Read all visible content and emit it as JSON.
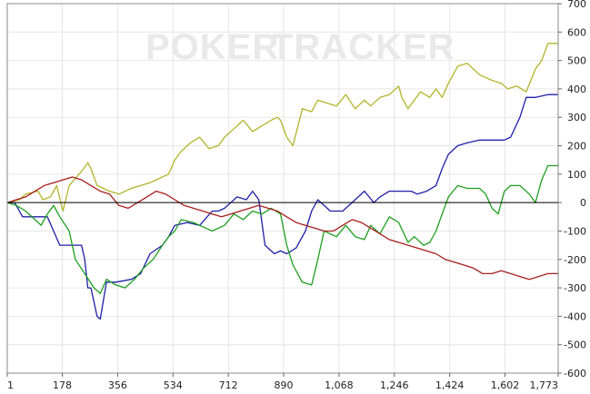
{
  "watermark": {
    "part1": "POKER",
    "part2": "TRACKER"
  },
  "chart_data": {
    "type": "line",
    "title": "",
    "xlabel": "",
    "ylabel": "",
    "xlim": [
      1,
      1773
    ],
    "ylim": [
      -600,
      700
    ],
    "x_ticks": [
      1,
      178,
      356,
      534,
      712,
      890,
      1068,
      1246,
      1424,
      1602,
      1773
    ],
    "x_tick_labels": [
      "1",
      "178",
      "356",
      "534",
      "712",
      "890",
      "1,068",
      "1,246",
      "1,424",
      "1,602",
      "1,773"
    ],
    "y_ticks": [
      700,
      600,
      500,
      400,
      300,
      200,
      100,
      0,
      -100,
      -200,
      -300,
      -400,
      -500,
      -600
    ],
    "y_tick_labels": [
      "700",
      "600",
      "500",
      "400",
      "300",
      "200",
      "100",
      "0",
      "-100",
      "-200",
      "-300",
      "-400",
      "-500",
      "-600"
    ],
    "y_axis_side": "right",
    "grid": true,
    "zero_line": true,
    "series": [
      {
        "color": "#b3b32a",
        "x": [
          1,
          40,
          60,
          100,
          115,
          140,
          160,
          180,
          200,
          240,
          260,
          270,
          290,
          330,
          360,
          400,
          430,
          460,
          480,
          520,
          540,
          560,
          590,
          620,
          650,
          680,
          700,
          730,
          760,
          790,
          820,
          850,
          870,
          880,
          900,
          920,
          950,
          980,
          1000,
          1030,
          1060,
          1090,
          1120,
          1150,
          1170,
          1200,
          1230,
          1260,
          1270,
          1290,
          1310,
          1330,
          1360,
          1380,
          1400,
          1420,
          1450,
          1480,
          1520,
          1560,
          1590,
          1610,
          1640,
          1670,
          1700,
          1720,
          1740,
          1773
        ],
        "y": [
          0,
          10,
          30,
          40,
          10,
          20,
          60,
          -30,
          60,
          110,
          140,
          120,
          60,
          40,
          30,
          50,
          60,
          70,
          80,
          100,
          150,
          180,
          210,
          230,
          190,
          200,
          230,
          260,
          290,
          250,
          270,
          290,
          300,
          290,
          230,
          200,
          330,
          320,
          360,
          350,
          340,
          380,
          330,
          360,
          340,
          370,
          380,
          410,
          370,
          330,
          360,
          390,
          370,
          400,
          370,
          420,
          480,
          490,
          450,
          430,
          420,
          400,
          410,
          390,
          470,
          500,
          560,
          560
        ]
      },
      {
        "color": "#1f1fa8",
        "x": [
          1,
          25,
          50,
          80,
          100,
          130,
          170,
          200,
          240,
          250,
          260,
          270,
          290,
          300,
          320,
          350,
          400,
          430,
          460,
          500,
          520,
          540,
          580,
          620,
          660,
          680,
          700,
          720,
          740,
          770,
          790,
          810,
          830,
          860,
          880,
          900,
          930,
          960,
          980,
          1000,
          1040,
          1080,
          1120,
          1150,
          1180,
          1200,
          1230,
          1260,
          1300,
          1320,
          1350,
          1380,
          1400,
          1420,
          1450,
          1480,
          1520,
          1560,
          1600,
          1620,
          1650,
          1670,
          1700,
          1740,
          1773
        ],
        "y": [
          0,
          0,
          -50,
          -50,
          -50,
          -50,
          -150,
          -150,
          -150,
          -200,
          -300,
          -300,
          -400,
          -410,
          -280,
          -280,
          -270,
          -250,
          -180,
          -150,
          -120,
          -80,
          -70,
          -80,
          -30,
          -30,
          -20,
          0,
          20,
          10,
          40,
          10,
          -150,
          -180,
          -170,
          -180,
          -160,
          -100,
          -30,
          10,
          -30,
          -30,
          10,
          40,
          0,
          20,
          40,
          40,
          40,
          30,
          40,
          60,
          120,
          170,
          200,
          210,
          220,
          220,
          220,
          230,
          300,
          370,
          370,
          380,
          380
        ]
      },
      {
        "color": "#1e9e1e",
        "x": [
          1,
          30,
          60,
          90,
          110,
          130,
          150,
          170,
          200,
          220,
          250,
          280,
          300,
          320,
          350,
          380,
          410,
          440,
          470,
          500,
          520,
          540,
          560,
          600,
          640,
          660,
          700,
          730,
          760,
          790,
          820,
          850,
          880,
          900,
          920,
          950,
          980,
          1000,
          1020,
          1060,
          1090,
          1120,
          1150,
          1170,
          1200,
          1230,
          1260,
          1290,
          1310,
          1340,
          1360,
          1380,
          1400,
          1420,
          1450,
          1480,
          1520,
          1540,
          1560,
          1580,
          1600,
          1620,
          1650,
          1680,
          1700,
          1720,
          1740,
          1773
        ],
        "y": [
          0,
          -10,
          -30,
          -60,
          -80,
          -40,
          -10,
          -50,
          -100,
          -200,
          -250,
          -300,
          -320,
          -270,
          -290,
          -300,
          -270,
          -230,
          -200,
          -150,
          -120,
          -100,
          -60,
          -70,
          -90,
          -100,
          -80,
          -40,
          -60,
          -30,
          -40,
          -20,
          -40,
          -150,
          -220,
          -280,
          -290,
          -200,
          -100,
          -120,
          -80,
          -120,
          -130,
          -80,
          -110,
          -50,
          -70,
          -140,
          -120,
          -150,
          -140,
          -100,
          -40,
          20,
          60,
          50,
          50,
          30,
          -20,
          -40,
          40,
          60,
          60,
          30,
          0,
          80,
          130,
          130
        ]
      },
      {
        "color": "#a81e1e",
        "x": [
          1,
          30,
          60,
          90,
          120,
          150,
          180,
          210,
          240,
          270,
          300,
          330,
          360,
          390,
          420,
          450,
          480,
          510,
          540,
          570,
          600,
          630,
          660,
          690,
          720,
          750,
          780,
          810,
          840,
          870,
          900,
          930,
          960,
          990,
          1020,
          1050,
          1080,
          1110,
          1140,
          1170,
          1200,
          1230,
          1260,
          1290,
          1320,
          1350,
          1380,
          1410,
          1440,
          1470,
          1500,
          1530,
          1560,
          1590,
          1620,
          1650,
          1680,
          1710,
          1740,
          1773
        ],
        "y": [
          0,
          10,
          20,
          40,
          60,
          70,
          80,
          90,
          80,
          60,
          40,
          30,
          -10,
          -20,
          0,
          20,
          40,
          30,
          10,
          -10,
          -20,
          -30,
          -40,
          -50,
          -40,
          -30,
          -20,
          -10,
          -20,
          -30,
          -50,
          -70,
          -80,
          -90,
          -100,
          -100,
          -80,
          -60,
          -70,
          -90,
          -110,
          -130,
          -140,
          -150,
          -160,
          -170,
          -180,
          -200,
          -210,
          -220,
          -230,
          -250,
          -250,
          -240,
          -250,
          -260,
          -270,
          -260,
          -250,
          -250
        ]
      }
    ]
  }
}
